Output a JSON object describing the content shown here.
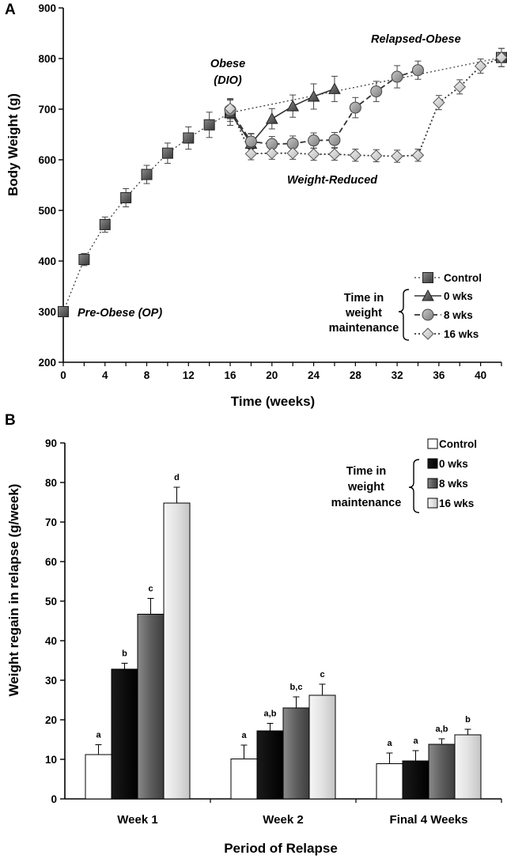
{
  "chart_data": [
    {
      "panel": "A",
      "type": "line",
      "xlabel": "Time (weeks)",
      "ylabel": "Body Weight (g)",
      "xlim": [
        0,
        42
      ],
      "ylim": [
        200,
        900
      ],
      "xticks": [
        0,
        4,
        8,
        12,
        16,
        20,
        24,
        28,
        32,
        36,
        40
      ],
      "yticks": [
        200,
        300,
        400,
        500,
        600,
        700,
        800,
        900
      ],
      "legend_group_title": [
        "Time in",
        "weight",
        "maintenance"
      ],
      "annotations": [
        "Pre-Obese (OP)",
        "Obese",
        "(DIO)",
        "Weight-Reduced",
        "Relapsed-Obese"
      ],
      "series": [
        {
          "name": "Control",
          "style": "dotted",
          "marker": "square",
          "x": [
            0,
            2,
            4,
            6,
            8,
            10,
            12,
            14,
            16,
            42
          ],
          "y": [
            300,
            403,
            472,
            525,
            571,
            613,
            643,
            669,
            693,
            802
          ],
          "err": [
            5,
            12,
            15,
            18,
            18,
            20,
            22,
            25,
            25,
            18
          ]
        },
        {
          "name": "0 wks",
          "style": "solid",
          "marker": "triangle",
          "x": [
            16,
            18,
            20,
            22,
            24,
            26
          ],
          "y": [
            693,
            632,
            681,
            706,
            725,
            740
          ],
          "err": [
            25,
            20,
            20,
            22,
            25,
            25
          ]
        },
        {
          "name": "8 wks",
          "style": "dashed",
          "marker": "circle",
          "x": [
            16,
            18,
            20,
            22,
            24,
            26,
            28,
            30,
            32,
            34
          ],
          "y": [
            698,
            636,
            631,
            632,
            638,
            639,
            703,
            735,
            764,
            777
          ],
          "err": [
            22,
            15,
            15,
            15,
            15,
            15,
            20,
            20,
            22,
            18
          ]
        },
        {
          "name": "16 wks",
          "style": "dotted",
          "marker": "diamond",
          "x": [
            16,
            18,
            20,
            22,
            24,
            26,
            28,
            30,
            32,
            34,
            36,
            38,
            40,
            42
          ],
          "y": [
            701,
            612,
            613,
            613,
            611,
            611,
            609,
            608,
            607,
            609,
            713,
            744,
            785,
            802
          ],
          "err": [
            20,
            12,
            12,
            12,
            12,
            12,
            12,
            12,
            12,
            12,
            14,
            14,
            14,
            18
          ]
        }
      ]
    },
    {
      "panel": "B",
      "type": "bar",
      "xlabel": "Period of Relapse",
      "ylabel": "Weight regain  in relapse (g/week)",
      "ylim": [
        0,
        90
      ],
      "yticks": [
        0,
        10,
        20,
        30,
        40,
        50,
        60,
        70,
        80,
        90
      ],
      "categories": [
        "Week 1",
        "Week 2",
        "Final 4 Weeks"
      ],
      "legend_group_title": [
        "Time in",
        "weight",
        "maintenance"
      ],
      "series": [
        {
          "name": "Control",
          "color": "#ffffff",
          "values": [
            11.2,
            10.1,
            8.9
          ],
          "err": [
            2.5,
            3.5,
            2.7
          ],
          "letters": [
            "a",
            "a",
            "a"
          ]
        },
        {
          "name": "0 wks",
          "color": "#000000",
          "values": [
            32.8,
            17.2,
            9.6
          ],
          "err": [
            1.5,
            1.9,
            2.6
          ],
          "letters": [
            "b",
            "a,b",
            "a"
          ]
        },
        {
          "name": "8 wks",
          "color": "#6a6a6a",
          "values": [
            46.7,
            23.0,
            13.8
          ],
          "err": [
            4.0,
            2.8,
            1.4
          ],
          "letters": [
            "c",
            "b,c",
            "a,b"
          ]
        },
        {
          "name": "16 wks",
          "color": "#e2e2e2",
          "values": [
            74.8,
            26.2,
            16.2
          ],
          "err": [
            4.0,
            2.8,
            1.4
          ],
          "letters": [
            "d",
            "c",
            "b"
          ]
        }
      ]
    }
  ]
}
